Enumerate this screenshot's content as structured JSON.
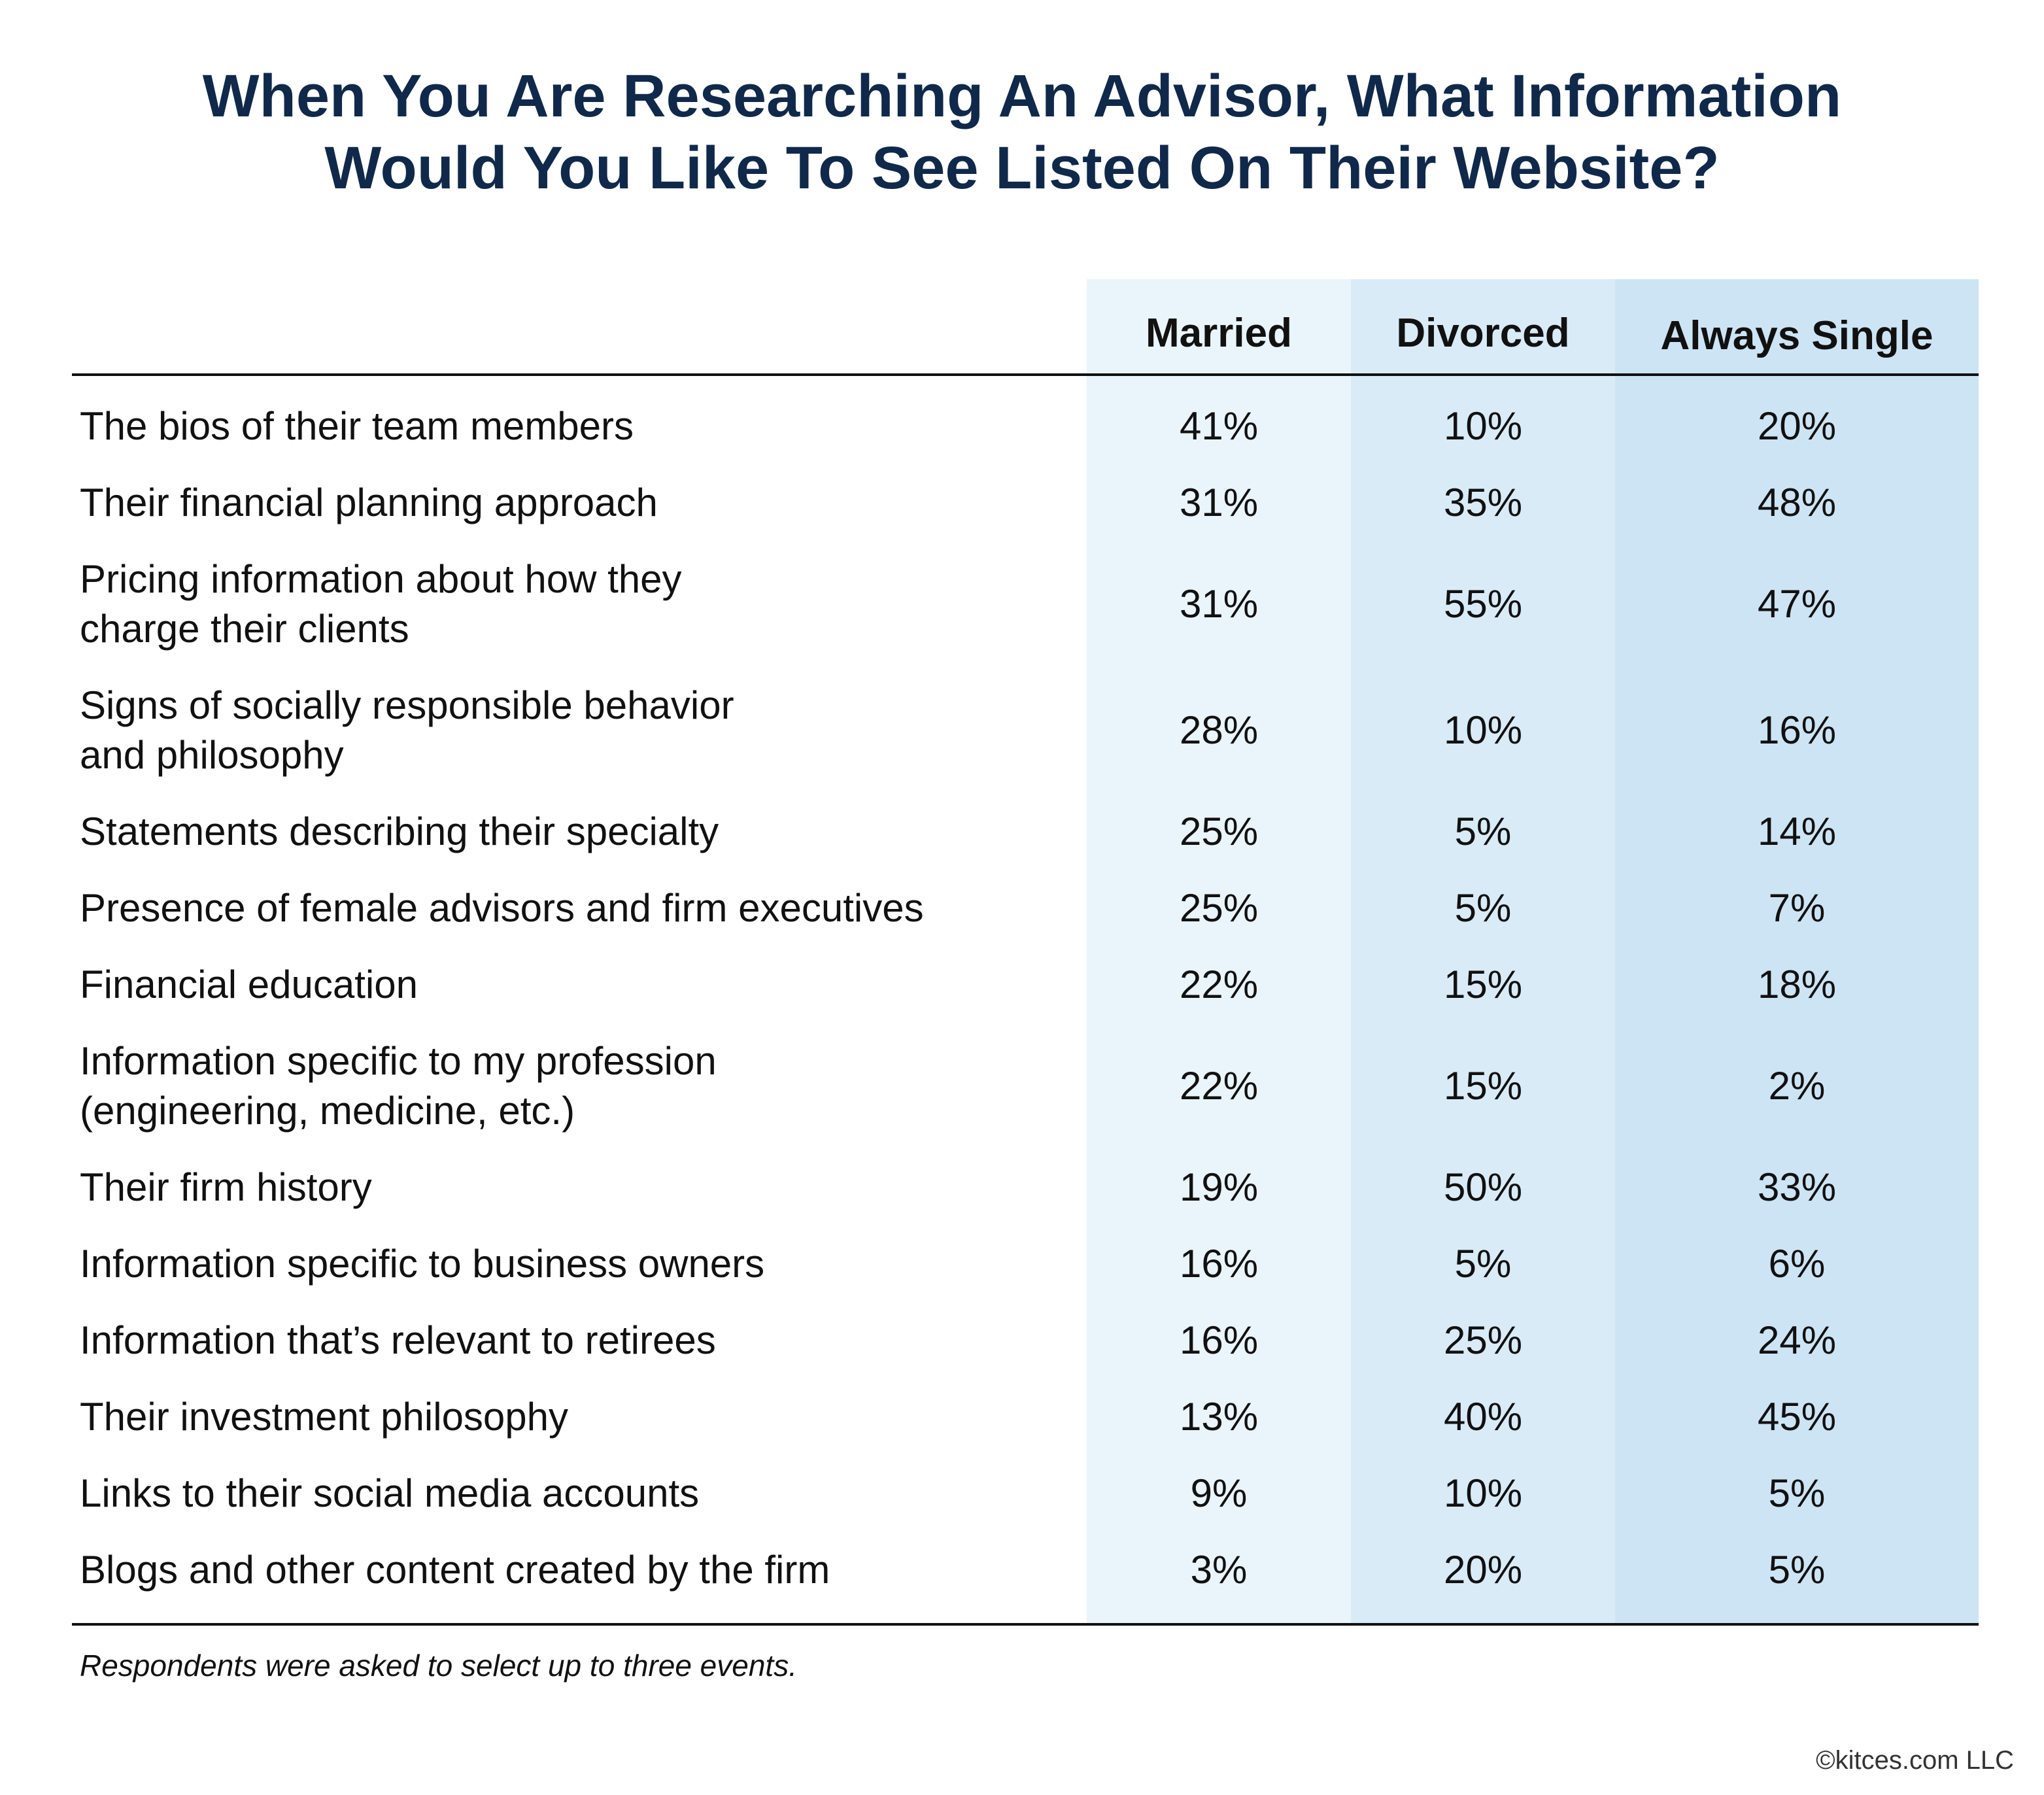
{
  "title_line1": "When You Are Researching An Advisor, What Information",
  "title_line2": "Would You Like To See Listed On Their Website?",
  "footnote": "Respondents were asked to select up to three events.",
  "copyright": "©kitces.com LLC",
  "chart_data": {
    "type": "table",
    "title": "When You Are Researching An Advisor, What Information Would You Like To See Listed On Their Website?",
    "columns": [
      "Married",
      "Divorced",
      "Always Single"
    ],
    "rows": [
      {
        "lines": [
          "The bios of their team members"
        ],
        "values": [
          "41%",
          "10%",
          "20%"
        ]
      },
      {
        "lines": [
          "Their financial planning approach"
        ],
        "values": [
          "31%",
          "35%",
          "48%"
        ]
      },
      {
        "lines": [
          "Pricing information about how they",
          "charge their clients"
        ],
        "values": [
          "31%",
          "55%",
          "47%"
        ]
      },
      {
        "lines": [
          "Signs of socially responsible behavior",
          "and philosophy"
        ],
        "values": [
          "28%",
          "10%",
          "16%"
        ]
      },
      {
        "lines": [
          "Statements describing their specialty"
        ],
        "values": [
          "25%",
          "5%",
          "14%"
        ]
      },
      {
        "lines": [
          "Presence of female advisors and firm executives"
        ],
        "values": [
          "25%",
          "5%",
          "7%"
        ]
      },
      {
        "lines": [
          "Financial education"
        ],
        "values": [
          "22%",
          "15%",
          "18%"
        ]
      },
      {
        "lines": [
          "Information specific to my profession",
          "(engineering, medicine, etc.)"
        ],
        "values": [
          "22%",
          "15%",
          "2%"
        ]
      },
      {
        "lines": [
          "Their firm history"
        ],
        "values": [
          "19%",
          "50%",
          "33%"
        ]
      },
      {
        "lines": [
          "Information specific to business owners"
        ],
        "values": [
          "16%",
          "5%",
          "6%"
        ]
      },
      {
        "lines": [
          "Information that’s relevant to retirees"
        ],
        "values": [
          "16%",
          "25%",
          "24%"
        ]
      },
      {
        "lines": [
          "Their investment philosophy"
        ],
        "values": [
          "13%",
          "40%",
          "45%"
        ]
      },
      {
        "lines": [
          "Links to their social media accounts"
        ],
        "values": [
          "9%",
          "10%",
          "5%"
        ]
      },
      {
        "lines": [
          "Blogs and other content created by the firm"
        ],
        "values": [
          "3%",
          "20%",
          "5%"
        ]
      }
    ]
  }
}
